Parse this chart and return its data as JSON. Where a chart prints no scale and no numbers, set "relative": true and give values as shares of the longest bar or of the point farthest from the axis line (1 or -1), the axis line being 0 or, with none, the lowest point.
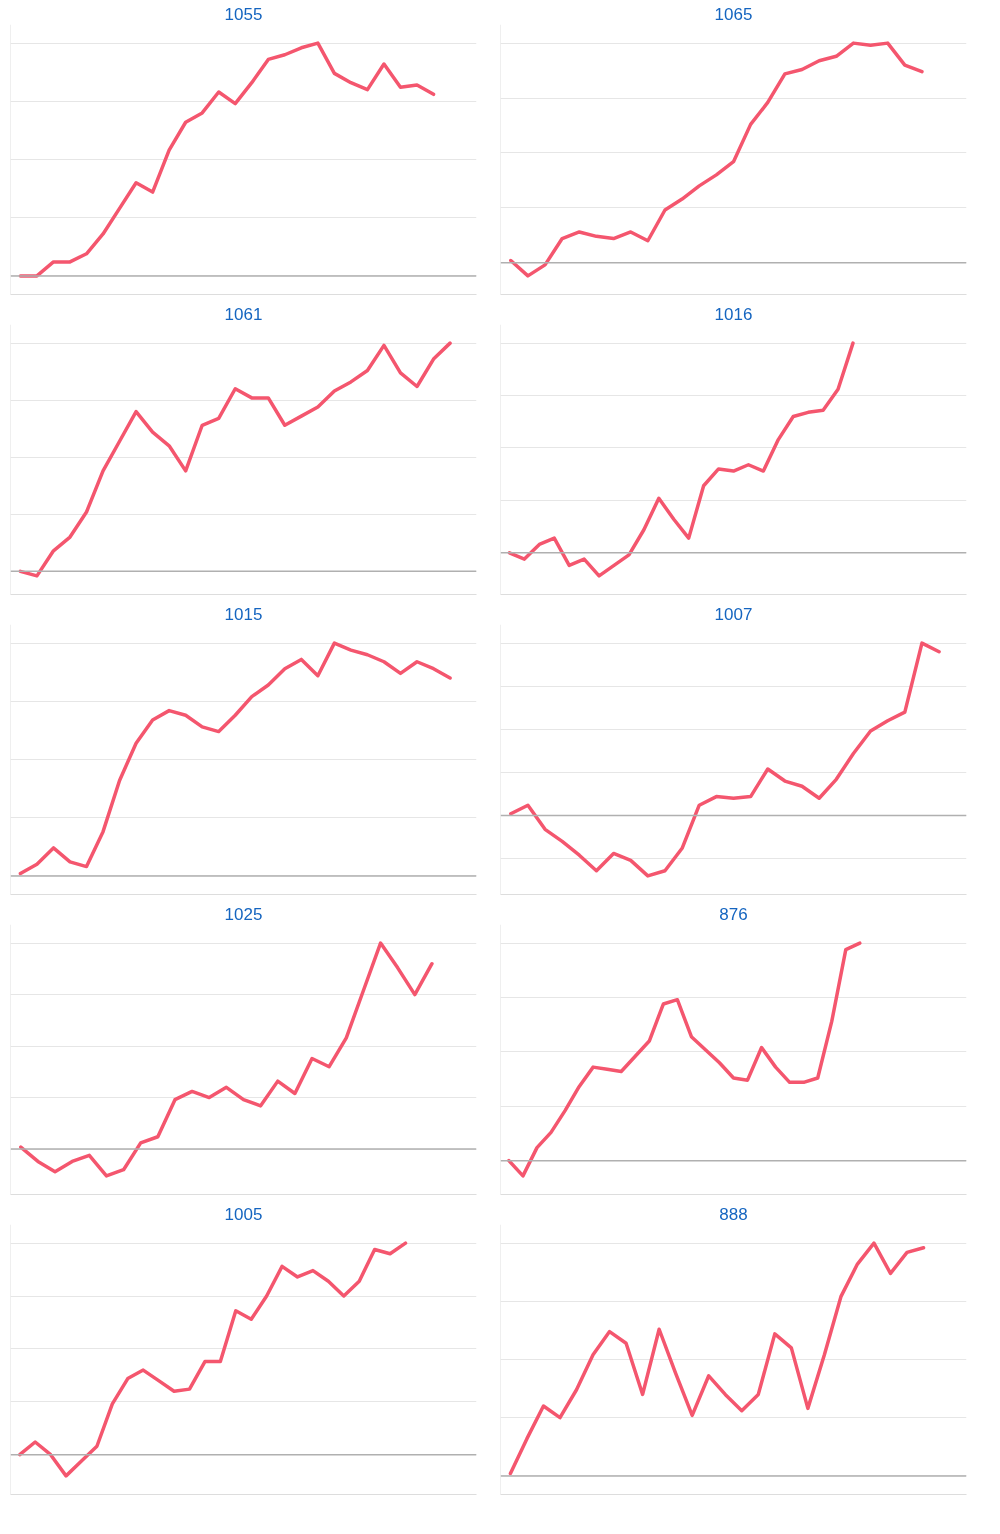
{
  "chart_data": [
    {
      "type": "line",
      "title": "1055",
      "relative": true,
      "grid": "y",
      "categories": [
        null,
        null,
        null,
        null,
        null,
        null,
        null,
        null,
        null,
        null,
        null,
        null,
        null,
        null,
        null,
        null,
        null,
        null,
        null,
        null,
        null,
        null,
        null,
        null,
        null,
        null,
        null,
        null
      ],
      "series": [
        {
          "color": "#f4566e",
          "values": [
            0,
            0,
            0.06,
            0.06,
            0.095,
            0.18,
            0.29,
            0.4,
            0.36,
            0.54,
            0.66,
            0.7,
            0.79,
            0.74,
            0.83,
            0.93,
            0.95,
            0.98,
            1.0,
            0.87,
            0.83,
            0.8,
            0.91,
            0.81,
            0.82,
            0.78,
            null,
            null
          ]
        }
      ]
    },
    {
      "type": "line",
      "title": "1065",
      "relative": true,
      "grid": "y",
      "categories": [
        null,
        null,
        null,
        null,
        null,
        null,
        null,
        null,
        null,
        null,
        null,
        null,
        null,
        null,
        null,
        null,
        null,
        null,
        null,
        null,
        null,
        null,
        null,
        null,
        null,
        null,
        null
      ],
      "series": [
        {
          "color": "#f4566e",
          "values": [
            0.01,
            -0.06,
            -0.01,
            0.11,
            0.14,
            0.12,
            0.11,
            0.14,
            0.1,
            0.24,
            0.29,
            0.35,
            0.4,
            0.46,
            0.63,
            0.73,
            0.86,
            0.88,
            0.92,
            0.94,
            1.0,
            0.99,
            1.0,
            0.9,
            0.87,
            null,
            null
          ]
        }
      ]
    },
    {
      "type": "line",
      "title": "1061",
      "relative": true,
      "grid": "y",
      "categories": [
        null,
        null,
        null,
        null,
        null,
        null,
        null,
        null,
        null,
        null,
        null,
        null,
        null,
        null,
        null,
        null,
        null,
        null,
        null,
        null,
        null,
        null,
        null,
        null,
        null,
        null,
        null,
        null
      ],
      "series": [
        {
          "color": "#f4566e",
          "values": [
            0,
            -0.02,
            0.09,
            0.15,
            0.26,
            0.44,
            0.57,
            0.7,
            0.61,
            0.55,
            0.44,
            0.64,
            0.67,
            0.8,
            0.76,
            0.76,
            0.64,
            0.68,
            0.72,
            0.79,
            0.83,
            0.88,
            0.99,
            0.87,
            0.81,
            0.93,
            1.0,
            null
          ]
        }
      ]
    },
    {
      "type": "line",
      "title": "1016",
      "relative": true,
      "grid": "y",
      "categories": [
        null,
        null,
        null,
        null,
        null,
        null,
        null,
        null,
        null,
        null,
        null,
        null,
        null,
        null,
        null,
        null,
        null,
        null,
        null,
        null,
        null,
        null,
        null,
        null,
        null,
        null,
        null,
        null,
        null,
        null,
        null
      ],
      "series": [
        {
          "color": "#f4566e",
          "values": [
            0,
            -0.03,
            0.04,
            0.07,
            -0.06,
            -0.03,
            -0.11,
            -0.06,
            -0.01,
            0.11,
            0.26,
            0.16,
            0.07,
            0.32,
            0.4,
            0.39,
            0.42,
            0.39,
            0.54,
            0.65,
            0.67,
            0.68,
            0.78,
            1.0,
            null,
            null,
            null,
            null,
            null,
            null,
            null
          ]
        }
      ]
    },
    {
      "type": "line",
      "title": "1015",
      "relative": true,
      "grid": "y",
      "categories": [
        null,
        null,
        null,
        null,
        null,
        null,
        null,
        null,
        null,
        null,
        null,
        null,
        null,
        null,
        null,
        null,
        null,
        null,
        null,
        null,
        null,
        null,
        null,
        null,
        null,
        null,
        null,
        null
      ],
      "series": [
        {
          "color": "#f4566e",
          "values": [
            0.01,
            0.05,
            0.12,
            0.06,
            0.04,
            0.19,
            0.41,
            0.57,
            0.67,
            0.71,
            0.69,
            0.64,
            0.62,
            0.69,
            0.77,
            0.82,
            0.89,
            0.93,
            0.86,
            1.0,
            0.97,
            0.95,
            0.92,
            0.87,
            0.92,
            0.89,
            0.85,
            null
          ]
        }
      ]
    },
    {
      "type": "line",
      "title": "1007",
      "relative": true,
      "grid": "y",
      "categories": [
        null,
        null,
        null,
        null,
        null,
        null,
        null,
        null,
        null,
        null,
        null,
        null,
        null,
        null,
        null,
        null,
        null,
        null,
        null,
        null,
        null,
        null,
        null,
        null,
        null,
        null,
        null
      ],
      "series": [
        {
          "color": "#f4566e",
          "values": [
            0.01,
            0.06,
            -0.08,
            -0.15,
            -0.23,
            -0.32,
            -0.22,
            -0.26,
            -0.35,
            -0.32,
            -0.19,
            0.06,
            0.11,
            0.1,
            0.11,
            0.27,
            0.2,
            0.17,
            0.1,
            0.21,
            0.36,
            0.49,
            0.55,
            0.6,
            1.0,
            0.95,
            null
          ]
        }
      ]
    },
    {
      "type": "line",
      "title": "1025",
      "relative": true,
      "grid": "y",
      "categories": [
        null,
        null,
        null,
        null,
        null,
        null,
        null,
        null,
        null,
        null,
        null,
        null,
        null,
        null,
        null,
        null,
        null,
        null,
        null,
        null,
        null,
        null,
        null,
        null,
        null,
        null,
        null
      ],
      "series": [
        {
          "color": "#f4566e",
          "values": [
            0.01,
            -0.06,
            -0.11,
            -0.06,
            -0.03,
            -0.13,
            -0.1,
            0.03,
            0.06,
            0.24,
            0.28,
            0.25,
            0.3,
            0.24,
            0.21,
            0.33,
            0.27,
            0.44,
            0.4,
            0.54,
            0.77,
            1.0,
            0.88,
            0.75,
            0.9,
            null,
            null
          ]
        }
      ]
    },
    {
      "type": "line",
      "title": "876",
      "relative": true,
      "grid": "y",
      "categories": [
        null,
        null,
        null,
        null,
        null,
        null,
        null,
        null,
        null,
        null,
        null,
        null,
        null,
        null,
        null,
        null,
        null,
        null,
        null,
        null,
        null,
        null,
        null,
        null,
        null,
        null,
        null,
        null,
        null,
        null,
        null,
        null,
        null
      ],
      "series": [
        {
          "color": "#f4566e",
          "values": [
            0,
            -0.07,
            0.06,
            0.13,
            0.23,
            0.34,
            0.43,
            0.42,
            0.41,
            0.48,
            0.55,
            0.72,
            0.74,
            0.57,
            0.51,
            0.45,
            0.38,
            0.37,
            0.52,
            0.43,
            0.36,
            0.36,
            0.38,
            0.64,
            0.97,
            1.0,
            null,
            null,
            null,
            null,
            null,
            null,
            null
          ]
        }
      ]
    },
    {
      "type": "line",
      "title": "1005",
      "relative": true,
      "grid": "y",
      "categories": [
        null,
        null,
        null,
        null,
        null,
        null,
        null,
        null,
        null,
        null,
        null,
        null,
        null,
        null,
        null,
        null,
        null,
        null,
        null,
        null,
        null,
        null,
        null,
        null,
        null,
        null,
        null,
        null,
        null,
        null
      ],
      "series": [
        {
          "color": "#f4566e",
          "values": [
            0,
            0.06,
            0,
            -0.1,
            -0.03,
            0.04,
            0.24,
            0.36,
            0.4,
            0.35,
            0.3,
            0.31,
            0.44,
            0.44,
            0.68,
            0.64,
            0.75,
            0.89,
            0.84,
            0.87,
            0.82,
            0.75,
            0.82,
            0.97,
            0.95,
            1.0,
            null,
            null,
            null,
            null
          ]
        }
      ]
    },
    {
      "type": "line",
      "title": "888",
      "relative": true,
      "grid": "y",
      "categories": [
        null,
        null,
        null,
        null,
        null,
        null,
        null,
        null,
        null,
        null,
        null,
        null,
        null,
        null,
        null,
        null,
        null,
        null,
        null,
        null,
        null,
        null,
        null,
        null,
        null,
        null,
        null,
        null
      ],
      "series": [
        {
          "color": "#f4566e",
          "values": [
            0.01,
            0.16,
            0.3,
            0.25,
            0.37,
            0.52,
            0.62,
            0.57,
            0.35,
            0.63,
            0.44,
            0.26,
            0.43,
            0.35,
            0.28,
            0.35,
            0.61,
            0.55,
            0.29,
            0.52,
            0.77,
            0.91,
            1.0,
            0.87,
            0.96,
            0.98,
            null,
            null
          ]
        }
      ]
    }
  ]
}
